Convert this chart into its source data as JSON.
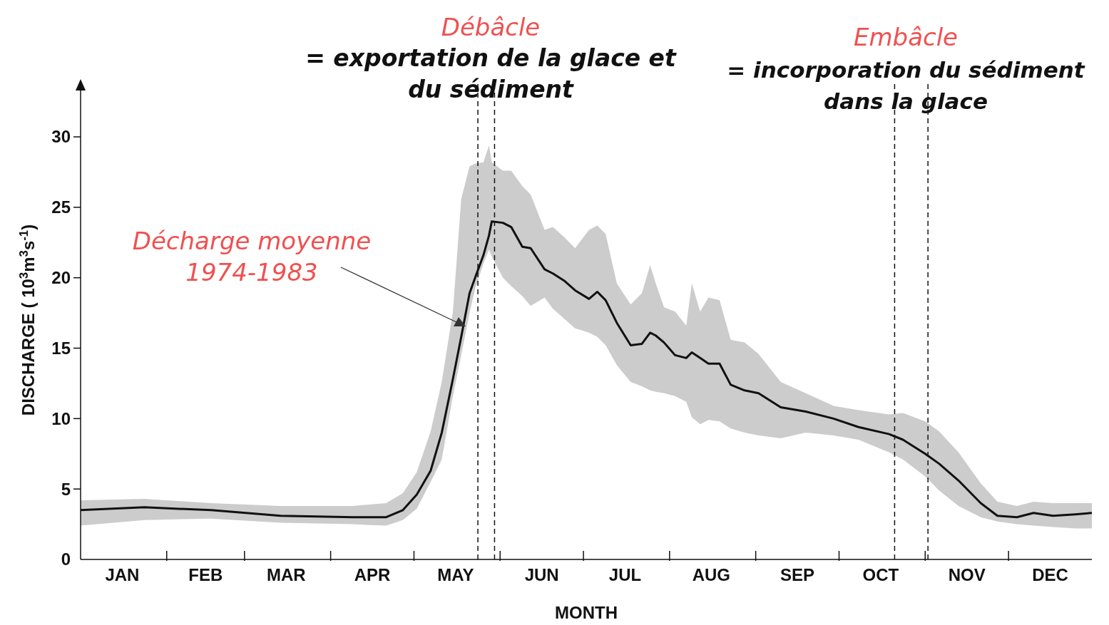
{
  "chart_data": {
    "type": "line",
    "xlabel": "MONTH",
    "ylabel": "DISCHARGE ( 10$^{3}$m$^{3}$s$^{-1}$)",
    "x": [
      "--01-01",
      "--01-24",
      "--02-17",
      "--03-14",
      "--04-09",
      "--04-21",
      "--04-27",
      "--05-02",
      "--05-07",
      "--05-11",
      "--05-15",
      "--05-18",
      "--05-21",
      "--05-23",
      "--05-26",
      "--05-28",
      "--05-29",
      "--06-02",
      "--06-05",
      "--06-09",
      "--06-12",
      "--06-17",
      "--06-20",
      "--06-24",
      "--06-28",
      "--07-03",
      "--07-06",
      "--07-09",
      "--07-13",
      "--07-18",
      "--07-22",
      "--07-25",
      "--07-27",
      "--07-30",
      "--08-03",
      "--08-07",
      "--08-09",
      "--08-12",
      "--08-15",
      "--08-19",
      "--08-23",
      "--08-28",
      "--09-02",
      "--09-10",
      "--09-19",
      "--09-29",
      "--10-08",
      "--10-19",
      "--10-24",
      "--11-01",
      "--11-06",
      "--11-13",
      "--11-21",
      "--11-27",
      "--12-04",
      "--12-10",
      "--12-17",
      "--12-25",
      "--12-31"
    ],
    "series": [
      {
        "color": "#111111",
        "values": [
          3.5,
          3.7,
          3.5,
          3.1,
          3.0,
          3.0,
          3.5,
          4.6,
          6.3,
          9.0,
          12.8,
          15.8,
          18.9,
          20.0,
          21.6,
          23.0,
          24.0,
          23.9,
          23.6,
          22.2,
          22.1,
          20.6,
          20.3,
          19.8,
          19.1,
          18.5,
          19.0,
          18.4,
          16.8,
          15.2,
          15.3,
          16.1,
          15.9,
          15.4,
          14.5,
          14.3,
          14.7,
          14.3,
          13.9,
          13.9,
          12.4,
          12.0,
          11.8,
          10.8,
          10.5,
          10.0,
          9.4,
          8.9,
          8.5,
          7.5,
          6.8,
          5.6,
          4.0,
          3.1,
          3.0,
          3.3,
          3.1,
          3.2,
          3.3
        ],
        "lower": [
          2.4,
          2.8,
          2.9,
          2.6,
          2.5,
          2.4,
          2.8,
          3.6,
          5.5,
          7.1,
          11.6,
          14.5,
          17.5,
          19.2,
          21.0,
          22.0,
          21.5,
          20.0,
          19.4,
          18.7,
          18.0,
          18.6,
          17.8,
          17.1,
          16.4,
          16.1,
          15.8,
          15.2,
          13.8,
          12.6,
          12.3,
          12.0,
          11.9,
          11.8,
          11.6,
          11.2,
          10.1,
          9.6,
          9.9,
          9.8,
          9.3,
          9.0,
          8.8,
          8.6,
          9.0,
          8.8,
          8.5,
          7.6,
          7.1,
          5.9,
          4.9,
          3.8,
          3.0,
          2.7,
          2.5,
          2.4,
          2.3,
          2.2,
          2.2
        ],
        "upper": [
          4.2,
          4.3,
          4.0,
          3.8,
          3.8,
          4.0,
          4.7,
          6.2,
          9.1,
          12.6,
          17.6,
          25.6,
          27.9,
          28.1,
          28.2,
          29.4,
          28.2,
          27.6,
          27.6,
          26.5,
          25.9,
          23.4,
          23.6,
          22.9,
          22.1,
          23.4,
          23.7,
          23.1,
          19.6,
          18.1,
          18.9,
          20.9,
          19.6,
          17.9,
          17.6,
          16.6,
          19.6,
          17.6,
          18.6,
          18.4,
          15.6,
          15.4,
          14.6,
          12.6,
          11.8,
          10.9,
          10.6,
          10.3,
          10.4,
          9.8,
          9.1,
          7.6,
          5.4,
          4.1,
          3.8,
          4.1,
          4.0,
          4.0,
          4.0
        ]
      }
    ],
    "xlim": [
      "--01-01",
      "--12-31"
    ],
    "xticks": [
      {
        "value": "--01-16",
        "label": "JAN"
      },
      {
        "value": "--02-01",
        "label": null
      },
      {
        "value": "--02-15",
        "label": "FEB"
      },
      {
        "value": "--03-01",
        "label": null
      },
      {
        "value": "--03-16",
        "label": "MAR"
      },
      {
        "value": "--04-01",
        "label": null
      },
      {
        "value": "--04-16",
        "label": "APR"
      },
      {
        "value": "--05-01",
        "label": null
      },
      {
        "value": "--05-16",
        "label": "MAY"
      },
      {
        "value": "--06-01",
        "label": null
      },
      {
        "value": "--06-16",
        "label": "JUN"
      },
      {
        "value": "--07-01",
        "label": null
      },
      {
        "value": "--07-16",
        "label": "JUL"
      },
      {
        "value": "--08-01",
        "label": null
      },
      {
        "value": "--08-16",
        "label": "AUG"
      },
      {
        "value": "--09-01",
        "label": null
      },
      {
        "value": "--09-16",
        "label": "SEP"
      },
      {
        "value": "--10-01",
        "label": null
      },
      {
        "value": "--10-16",
        "label": "OCT"
      },
      {
        "value": "--11-01",
        "label": null
      },
      {
        "value": "--11-16",
        "label": "NOV"
      },
      {
        "value": "--12-01",
        "label": null
      },
      {
        "value": "--12-16",
        "label": "DEC"
      }
    ],
    "ylim": [
      0,
      34
    ],
    "yticks": [
      0,
      5,
      10,
      15,
      20,
      25,
      30
    ],
    "ref_lines": [
      {
        "axis": "x",
        "value": "--05-24",
        "color": "#111111",
        "line_style": "dashed"
      },
      {
        "axis": "x",
        "value": "--05-30",
        "color": "#111111",
        "line_style": "dashed"
      },
      {
        "axis": "x",
        "value": "--10-21",
        "color": "#111111",
        "line_style": "dashed"
      },
      {
        "axis": "x",
        "value": "--11-02",
        "color": "#111111",
        "line_style": "dashed"
      }
    ],
    "annotations": [
      "Débâcle",
      "= exportation de la glace et du sédiment",
      "Embâcle",
      "= incorporation du sédiment dans la glace",
      "Décharge moyenne 1974-1983"
    ],
    "grid": false,
    "legend": false,
    "marker": "none",
    "line_style": "solid"
  }
}
